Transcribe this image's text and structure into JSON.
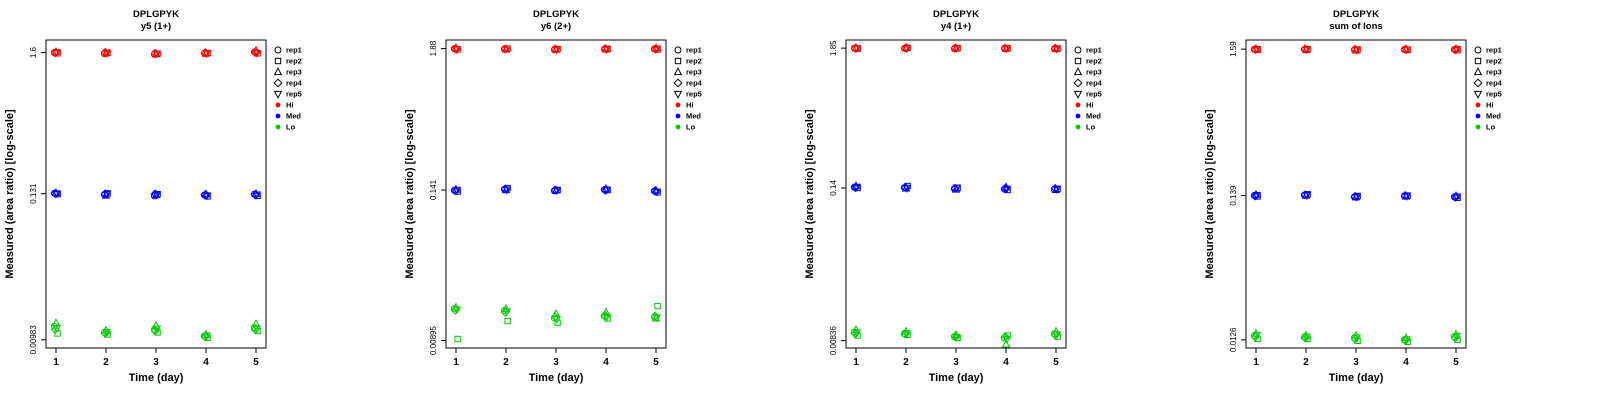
{
  "common": {
    "xlabel": "Time (day)",
    "ylabel": "Measured (area ratio) [log-scale]",
    "x_tick_labels": [
      "1",
      "2",
      "3",
      "4",
      "5"
    ],
    "legend": {
      "reps": [
        "rep1",
        "rep2",
        "rep3",
        "rep4",
        "rep5"
      ],
      "levels": [
        {
          "name": "Hi",
          "color": "#FF0000"
        },
        {
          "name": "Med",
          "color": "#0000FF"
        },
        {
          "name": "Lo",
          "color": "#00CC00"
        }
      ]
    }
  },
  "chart_data": [
    {
      "type": "scatter",
      "title": "DPLGPYK",
      "subtitle": "y5 (1+)",
      "xlabel": "Time (day)",
      "ylabel": "Measured (area ratio) [log-scale]",
      "x": [
        1,
        2,
        3,
        4,
        5
      ],
      "yticks": [
        {
          "label": "1.6",
          "value": 1.6
        },
        {
          "label": "0.131",
          "value": 0.131
        },
        {
          "label": "0.00983",
          "value": 0.00983
        }
      ],
      "ylim": [
        0.0085,
        2.0
      ],
      "series": [
        {
          "name": "Hi",
          "color": "#FF0000",
          "values": [
            [
              1.6,
              1.58,
              1.62,
              1.59,
              1.61
            ],
            [
              1.57,
              1.6,
              1.58,
              1.61,
              1.59
            ],
            [
              1.55,
              1.57,
              1.56,
              1.58,
              1.57
            ],
            [
              1.58,
              1.59,
              1.57,
              1.6,
              1.58
            ],
            [
              1.62,
              1.58,
              1.66,
              1.6,
              1.59
            ]
          ]
        },
        {
          "name": "Med",
          "color": "#0000FF",
          "values": [
            [
              0.132,
              0.13,
              0.133,
              0.131,
              0.132
            ],
            [
              0.129,
              0.132,
              0.127,
              0.131,
              0.13
            ],
            [
              0.126,
              0.13,
              0.128,
              0.131,
              0.129
            ],
            [
              0.128,
              0.125,
              0.13,
              0.129,
              0.127
            ],
            [
              0.13,
              0.126,
              0.131,
              0.128,
              0.129
            ]
          ]
        },
        {
          "name": "Lo",
          "color": "#00CC00",
          "values": [
            [
              0.0125,
              0.011,
              0.0132,
              0.0118,
              0.0121
            ],
            [
              0.0112,
              0.0108,
              0.0116,
              0.011,
              0.0113
            ],
            [
              0.0118,
              0.0112,
              0.0126,
              0.0115,
              0.012
            ],
            [
              0.0105,
              0.0102,
              0.0108,
              0.0104,
              0.0106
            ],
            [
              0.0122,
              0.0115,
              0.013,
              0.0118,
              0.012
            ]
          ]
        }
      ]
    },
    {
      "type": "scatter",
      "title": "DPLGPYK",
      "subtitle": "y6 (2+)",
      "xlabel": "Time (day)",
      "ylabel": "Measured (area ratio) [log-scale]",
      "x": [
        1,
        2,
        3,
        4,
        5
      ],
      "yticks": [
        {
          "label": "1.88",
          "value": 1.88
        },
        {
          "label": "0.141",
          "value": 0.141
        },
        {
          "label": "0.00895",
          "value": 0.00895
        }
      ],
      "ylim": [
        0.0078,
        2.2
      ],
      "series": [
        {
          "name": "Hi",
          "color": "#FF0000",
          "values": [
            [
              1.88,
              1.85,
              1.9,
              1.87,
              1.86
            ],
            [
              1.86,
              1.88,
              1.85,
              1.87,
              1.88
            ],
            [
              1.84,
              1.86,
              1.85,
              1.87,
              1.85
            ],
            [
              1.86,
              1.87,
              1.85,
              1.88,
              1.86
            ],
            [
              1.87,
              1.85,
              1.9,
              1.86,
              1.88
            ]
          ]
        },
        {
          "name": "Med",
          "color": "#0000FF",
          "values": [
            [
              0.14,
              0.137,
              0.142,
              0.139,
              0.141
            ],
            [
              0.143,
              0.146,
              0.141,
              0.144,
              0.142
            ],
            [
              0.139,
              0.141,
              0.14,
              0.141,
              0.14
            ],
            [
              0.142,
              0.141,
              0.144,
              0.14,
              0.142
            ],
            [
              0.138,
              0.135,
              0.14,
              0.139,
              0.137
            ]
          ]
        },
        {
          "name": "Lo",
          "color": "#00CC00",
          "values": [
            [
              0.016,
              0.0092,
              0.0164,
              0.0156,
              0.0158
            ],
            [
              0.0155,
              0.0128,
              0.016,
              0.015,
              0.0152
            ],
            [
              0.0135,
              0.0124,
              0.0146,
              0.0138,
              0.0132
            ],
            [
              0.014,
              0.0134,
              0.015,
              0.0142,
              0.0138
            ],
            [
              0.0138,
              0.0168,
              0.0134,
              0.014,
              0.0136
            ]
          ]
        }
      ]
    },
    {
      "type": "scatter",
      "title": "DPLGPYK",
      "subtitle": "y4 (1+)",
      "xlabel": "Time (day)",
      "ylabel": "Measured (area ratio) [log-scale]",
      "x": [
        1,
        2,
        3,
        4,
        5
      ],
      "yticks": [
        {
          "label": "1.85",
          "value": 1.85
        },
        {
          "label": "0.14",
          "value": 0.14
        },
        {
          "label": "0.00836",
          "value": 0.00836
        }
      ],
      "ylim": [
        0.0073,
        2.15
      ],
      "series": [
        {
          "name": "Hi",
          "color": "#FF0000",
          "values": [
            [
              1.85,
              1.83,
              1.86,
              1.84,
              1.85
            ],
            [
              1.84,
              1.86,
              1.87,
              1.85,
              1.84
            ],
            [
              1.83,
              1.85,
              1.84,
              1.86,
              1.85
            ],
            [
              1.84,
              1.85,
              1.83,
              1.85,
              1.84
            ],
            [
              1.83,
              1.84,
              1.82,
              1.85,
              1.83
            ]
          ]
        },
        {
          "name": "Med",
          "color": "#0000FF",
          "values": [
            [
              0.142,
              0.14,
              0.145,
              0.141,
              0.143
            ],
            [
              0.141,
              0.145,
              0.139,
              0.142,
              0.14
            ],
            [
              0.138,
              0.14,
              0.136,
              0.139,
              0.141
            ],
            [
              0.137,
              0.135,
              0.142,
              0.139,
              0.138
            ],
            [
              0.136,
              0.138,
              0.135,
              0.139,
              0.137
            ]
          ]
        },
        {
          "name": "Lo",
          "color": "#00CC00",
          "values": [
            [
              0.0098,
              0.0092,
              0.0102,
              0.0095,
              0.0097
            ],
            [
              0.0095,
              0.0093,
              0.0099,
              0.0094,
              0.0096
            ],
            [
              0.009,
              0.0088,
              0.0093,
              0.0091,
              0.0089
            ],
            [
              0.0088,
              0.0092,
              0.0078,
              0.009,
              0.0086
            ],
            [
              0.0095,
              0.009,
              0.0099,
              0.0093,
              0.0094
            ]
          ]
        }
      ]
    },
    {
      "type": "scatter",
      "title": "DPLGPYK",
      "subtitle": "sum of Ions",
      "xlabel": "Time (day)",
      "ylabel": "Measured (area ratio) [log-scale]",
      "x": [
        1,
        2,
        3,
        4,
        5
      ],
      "yticks": [
        {
          "label": "1.59",
          "value": 1.59
        },
        {
          "label": "0.139",
          "value": 0.139
        },
        {
          "label": "0.0126",
          "value": 0.0126
        }
      ],
      "ylim": [
        0.011,
        1.85
      ],
      "series": [
        {
          "name": "Hi",
          "color": "#FF0000",
          "values": [
            [
              1.59,
              1.57,
              1.6,
              1.58,
              1.59
            ],
            [
              1.58,
              1.59,
              1.57,
              1.6,
              1.58
            ],
            [
              1.57,
              1.58,
              1.56,
              1.59,
              1.57
            ],
            [
              1.58,
              1.57,
              1.59,
              1.58,
              1.58
            ],
            [
              1.58,
              1.56,
              1.6,
              1.57,
              1.59
            ]
          ]
        },
        {
          "name": "Med",
          "color": "#0000FF",
          "values": [
            [
              0.139,
              0.137,
              0.141,
              0.138,
              0.14
            ],
            [
              0.14,
              0.142,
              0.139,
              0.141,
              0.14
            ],
            [
              0.136,
              0.138,
              0.135,
              0.137,
              0.136
            ],
            [
              0.138,
              0.139,
              0.137,
              0.139,
              0.138
            ],
            [
              0.136,
              0.134,
              0.138,
              0.135,
              0.137
            ]
          ]
        },
        {
          "name": "Lo",
          "color": "#00CC00",
          "values": [
            [
              0.0135,
              0.0128,
              0.014,
              0.0132,
              0.0136
            ],
            [
              0.0132,
              0.0128,
              0.0136,
              0.013,
              0.0133
            ],
            [
              0.013,
              0.0124,
              0.0135,
              0.0128,
              0.0131
            ],
            [
              0.0126,
              0.0122,
              0.013,
              0.0125,
              0.0127
            ],
            [
              0.0133,
              0.0126,
              0.0138,
              0.013,
              0.0134
            ]
          ]
        }
      ]
    }
  ]
}
